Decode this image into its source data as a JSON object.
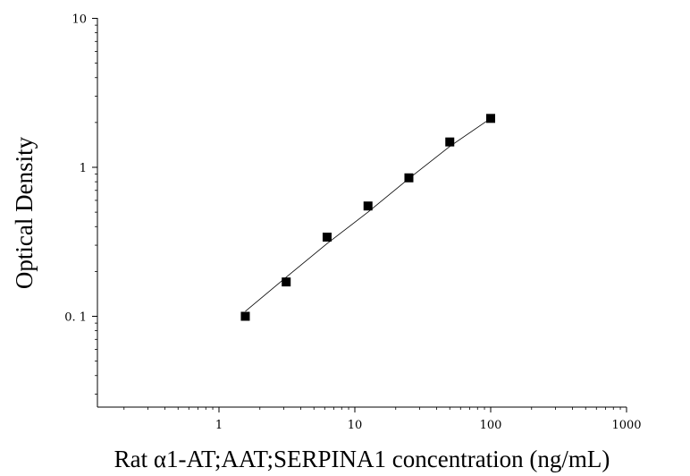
{
  "chart_data": {
    "type": "scatter",
    "title": "",
    "xlabel": "Rat α1-AT;AAT;SERPINA1 concentration (ng/mL)",
    "ylabel": "Optical Density",
    "xscale": "log",
    "yscale": "log",
    "xlim": [
      0.1,
      1000
    ],
    "ylim": [
      0.03,
      10
    ],
    "x_ticks": [
      {
        "value": 1,
        "label": "1"
      },
      {
        "value": 10,
        "label": "10"
      },
      {
        "value": 100,
        "label": "100"
      },
      {
        "value": 1000,
        "label": "1000"
      }
    ],
    "y_ticks": [
      {
        "value": 0.1,
        "label": "0. 1"
      },
      {
        "value": 1,
        "label": "1"
      },
      {
        "value": 10,
        "label": "10"
      }
    ],
    "grid": false,
    "legend": "none",
    "series": [
      {
        "marker": "square",
        "color": "#000000",
        "points": [
          {
            "x": 1.5625,
            "y": 0.1
          },
          {
            "x": 3.125,
            "y": 0.17
          },
          {
            "x": 6.25,
            "y": 0.34
          },
          {
            "x": 12.5,
            "y": 0.55
          },
          {
            "x": 25,
            "y": 0.85
          },
          {
            "x": 50,
            "y": 1.48
          },
          {
            "x": 100,
            "y": 2.13
          }
        ],
        "fit_line": [
          {
            "x": 1.5625,
            "y": 0.108
          },
          {
            "x": 3.125,
            "y": 0.183
          },
          {
            "x": 6.25,
            "y": 0.308
          },
          {
            "x": 12.5,
            "y": 0.5
          },
          {
            "x": 25,
            "y": 0.84
          },
          {
            "x": 50,
            "y": 1.38
          },
          {
            "x": 100,
            "y": 2.13
          }
        ]
      }
    ]
  }
}
